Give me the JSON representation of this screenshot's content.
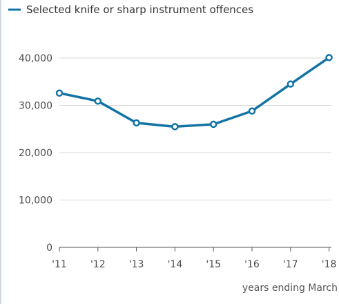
{
  "chart_data": {
    "type": "line",
    "categories": [
      "'11",
      "'12",
      "'13",
      "'14",
      "'15",
      "'16",
      "'17",
      "'18"
    ],
    "series": [
      {
        "name": "Selected knife or sharp instrument offences",
        "values": [
          32600,
          30900,
          26300,
          25500,
          26000,
          28800,
          34500,
          40100
        ],
        "color": "#1273a4"
      }
    ],
    "xlabel": "years ending March",
    "ylabel": "",
    "ylim": [
      0,
      40000
    ],
    "yticks": [
      0,
      10000,
      20000,
      30000,
      40000
    ],
    "ytick_labels": [
      "0",
      "10,000",
      "20,000",
      "30,000",
      "40,000"
    ],
    "grid": true,
    "grid_color": "#d9d9d9",
    "legend_position": "top-left",
    "marker": "hollow-circle"
  }
}
